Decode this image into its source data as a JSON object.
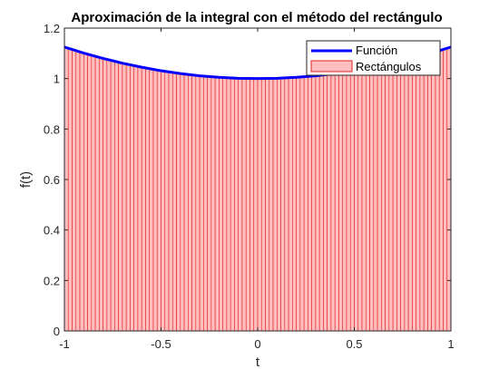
{
  "chart_data": {
    "type": "bar",
    "title": "Aproximación de la integral con el método del rectángulo",
    "xlabel": "t",
    "ylabel": "f(t)",
    "xlim": [
      -1,
      1
    ],
    "ylim": [
      0,
      1.2
    ],
    "x_ticks": [
      "-1",
      "-0.5",
      "0",
      "0.5",
      "1"
    ],
    "y_ticks": [
      "0",
      "0.2",
      "0.4",
      "0.6",
      "0.8",
      "1",
      "1.2"
    ],
    "function": {
      "name": "Función",
      "color": "#0000ff",
      "x": [
        -1.0,
        -0.9,
        -0.8,
        -0.7,
        -0.6,
        -0.5,
        -0.4,
        -0.3,
        -0.2,
        -0.1,
        0.0,
        0.1,
        0.2,
        0.3,
        0.4,
        0.5,
        0.6,
        0.7,
        0.8,
        0.9,
        1.0
      ],
      "y": [
        1.125,
        1.101,
        1.08,
        1.061,
        1.045,
        1.031,
        1.02,
        1.011,
        1.005,
        1.001,
        1.0,
        1.001,
        1.005,
        1.011,
        1.02,
        1.031,
        1.045,
        1.061,
        1.08,
        1.101,
        1.125
      ]
    },
    "rectangles": {
      "name": "Rectángulos",
      "fill": "#ffbfbf",
      "edge": "#e02020",
      "count": 100,
      "x_start": -1,
      "x_end": 1
    },
    "legend": {
      "location": "top-right",
      "entries": [
        "Función",
        "Rectángulos"
      ]
    },
    "grid": false
  }
}
